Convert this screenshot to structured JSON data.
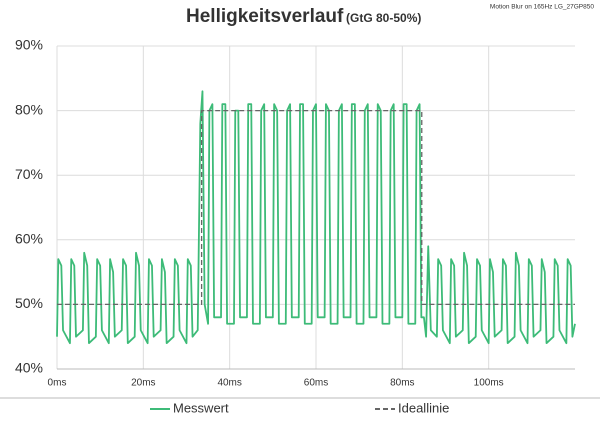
{
  "chart_data": {
    "type": "line",
    "title": "Helligkeitsverlauf",
    "subtitle": "(GtG 80-50%)",
    "annotation": "Motion Blur on 165Hz LG_27GP850",
    "xlim": [
      0,
      120
    ],
    "ylim": [
      40,
      90
    ],
    "xticks": [
      {
        "value": 0,
        "label": "0ms"
      },
      {
        "value": 20,
        "label": "20ms"
      },
      {
        "value": 40,
        "label": "40ms"
      },
      {
        "value": 60,
        "label": "60ms"
      },
      {
        "value": 80,
        "label": "80ms"
      },
      {
        "value": 100,
        "label": "100ms"
      }
    ],
    "yticks": [
      {
        "value": 40,
        "label": "40%"
      },
      {
        "value": 50,
        "label": "50%"
      },
      {
        "value": 60,
        "label": "60%"
      },
      {
        "value": 70,
        "label": "70%"
      },
      {
        "value": 80,
        "label": "80%"
      },
      {
        "value": 90,
        "label": "90%"
      }
    ],
    "grid": true,
    "legend": "bottom",
    "series": [
      {
        "name": "Messwert",
        "color": "#3dbb78",
        "style": "solid",
        "x": [
          0,
          0.3,
          1,
          1.4,
          3,
          3.3,
          4,
          4.4,
          6,
          6.3,
          7,
          7.4,
          9,
          9.3,
          10,
          10.4,
          12,
          12.3,
          13,
          13.4,
          15,
          15.3,
          16,
          16.4,
          18,
          18.3,
          19,
          19.4,
          21,
          21.3,
          22,
          22.4,
          24,
          24.3,
          25,
          25.4,
          27,
          27.3,
          28,
          28.4,
          30,
          30.3,
          31,
          31.4,
          32.6,
          33.2,
          33.7,
          34.2,
          35,
          35.3,
          36,
          36.4,
          38,
          38.3,
          39,
          39.4,
          41,
          41.3,
          42,
          42.4,
          44,
          44.3,
          45,
          45.4,
          47,
          47.3,
          48,
          48.4,
          50,
          50.3,
          51,
          51.4,
          53,
          53.3,
          54,
          54.4,
          56,
          56.3,
          57,
          57.4,
          59,
          59.3,
          60,
          60.4,
          62,
          62.3,
          63,
          63.4,
          65,
          65.3,
          66,
          66.4,
          68,
          68.3,
          69,
          69.4,
          71,
          71.3,
          72,
          72.4,
          74,
          74.3,
          75,
          75.4,
          77,
          77.3,
          78,
          78.4,
          80,
          80.3,
          81,
          81.4,
          83,
          83.3,
          84,
          84.4,
          85,
          85.5,
          86,
          86.6,
          88,
          88.3,
          89,
          89.4,
          91,
          91.3,
          92,
          92.4,
          94,
          94.3,
          95,
          95.4,
          97,
          97.3,
          98,
          98.4,
          100,
          100.3,
          101,
          101.4,
          103,
          103.3,
          104,
          104.4,
          106,
          106.3,
          107,
          107.4,
          109,
          109.3,
          110,
          110.4,
          112,
          112.3,
          113,
          113.4,
          115,
          115.3,
          116,
          116.4,
          118,
          118.3,
          119,
          119.4,
          120
        ],
        "values": [
          45,
          57,
          56,
          46,
          44,
          57,
          56,
          45,
          46,
          58,
          56,
          44,
          45,
          57,
          56,
          46,
          44,
          57,
          55,
          45,
          46,
          57,
          56,
          44,
          45,
          58,
          56,
          46,
          44,
          57,
          56,
          45,
          46,
          57,
          55,
          44,
          45,
          57,
          56,
          46,
          44,
          57,
          56,
          45,
          46,
          78,
          83,
          50,
          47,
          80,
          81,
          48,
          48,
          81,
          81,
          47,
          47,
          80,
          80,
          48,
          48,
          81,
          81,
          47,
          47,
          80,
          81,
          48,
          48,
          81,
          80,
          47,
          47,
          80,
          81,
          48,
          48,
          81,
          81,
          47,
          47,
          80,
          81,
          48,
          48,
          81,
          80,
          47,
          47,
          80,
          81,
          48,
          48,
          81,
          81,
          47,
          47,
          80,
          81,
          48,
          48,
          81,
          80,
          47,
          47,
          80,
          81,
          48,
          48,
          81,
          81,
          47,
          47,
          80,
          81,
          48,
          48,
          45,
          59,
          46,
          45,
          57,
          56,
          46,
          44,
          57,
          56,
          45,
          46,
          58,
          56,
          44,
          45,
          57,
          56,
          46,
          44,
          57,
          55,
          45,
          46,
          57,
          56,
          44,
          45,
          58,
          56,
          46,
          44,
          57,
          56,
          45,
          46,
          57,
          55,
          44,
          45,
          57,
          56,
          46,
          44,
          57,
          56,
          45,
          47
        ]
      },
      {
        "name": "Ideallinie",
        "color": "#666666",
        "style": "dashed",
        "x": [
          0,
          33.5,
          33.5,
          84.5,
          84.5,
          120
        ],
        "values": [
          50,
          50,
          80,
          80,
          50,
          50
        ]
      }
    ]
  }
}
